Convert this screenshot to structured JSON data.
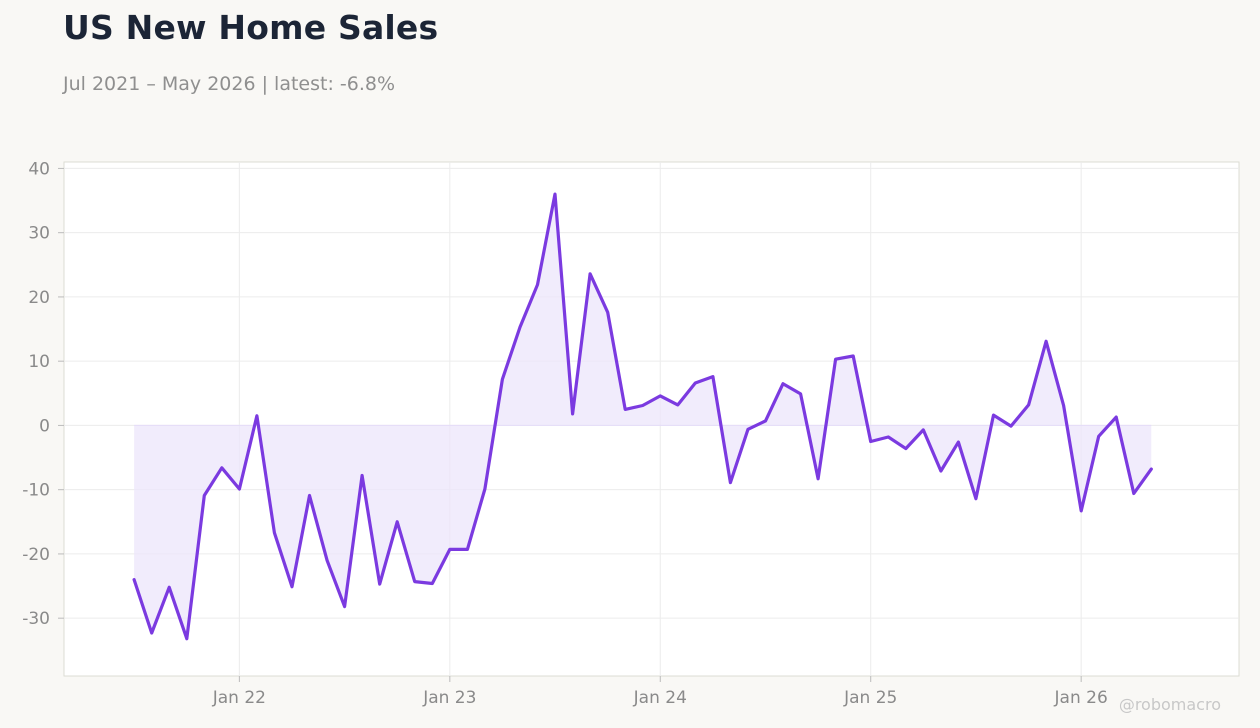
{
  "header": {
    "title": "US New Home Sales",
    "subtitle": "Jul 2021 – May 2026 | latest: -6.8%"
  },
  "watermark": "@robomacro",
  "colors": {
    "line": "#7b3ae0",
    "fill": "#ece6fb",
    "background": "#f9f8f5",
    "plot_background": "#ffffff"
  },
  "chart_data": {
    "type": "line",
    "title": "US New Home Sales",
    "subtitle": "Jul 2021 – May 2026 | latest: -6.8%",
    "xlabel": "",
    "ylabel": "",
    "grid": true,
    "fill_to_zero": true,
    "xlim": [
      "2021-03",
      "2026-10"
    ],
    "ylim": [
      -39,
      41
    ],
    "y_ticks": [
      -30,
      -20,
      -10,
      0,
      10,
      20,
      30,
      40
    ],
    "x_ticks": [
      {
        "date": "2022-01",
        "label": "Jan 22"
      },
      {
        "date": "2023-01",
        "label": "Jan 23"
      },
      {
        "date": "2024-01",
        "label": "Jan 24"
      },
      {
        "date": "2025-01",
        "label": "Jan 25"
      },
      {
        "date": "2026-01",
        "label": "Jan 26"
      }
    ],
    "series": [
      {
        "x": [
          "2021-07",
          "2021-08",
          "2021-09",
          "2021-10",
          "2021-11",
          "2021-12",
          "2022-01",
          "2022-02",
          "2022-03",
          "2022-04",
          "2022-05",
          "2022-06",
          "2022-07",
          "2022-08",
          "2022-09",
          "2022-10",
          "2022-11",
          "2022-12",
          "2023-01",
          "2023-02",
          "2023-03",
          "2023-04",
          "2023-05",
          "2023-06",
          "2023-07",
          "2023-08",
          "2023-09",
          "2023-10",
          "2023-11",
          "2023-12",
          "2024-01",
          "2024-02",
          "2024-03",
          "2024-04",
          "2024-05",
          "2024-06",
          "2024-07",
          "2024-08",
          "2024-09",
          "2024-10",
          "2024-11",
          "2024-12",
          "2025-01",
          "2025-02",
          "2025-03",
          "2025-04",
          "2025-05",
          "2025-06",
          "2025-07",
          "2025-08",
          "2025-09",
          "2025-10",
          "2025-11",
          "2025-12",
          "2026-01",
          "2026-02",
          "2026-03",
          "2026-04",
          "2026-05"
        ],
        "values": [
          -24.0,
          -32.3,
          -25.2,
          -33.2,
          -10.9,
          -6.6,
          -9.9,
          1.5,
          -16.7,
          -25.1,
          -10.9,
          -21.0,
          -28.2,
          -7.8,
          -24.7,
          -15.0,
          -24.3,
          -24.6,
          -19.3,
          -19.3,
          -9.9,
          7.2,
          15.3,
          21.9,
          36.0,
          1.8,
          23.6,
          17.6,
          2.5,
          3.1,
          4.6,
          3.2,
          6.6,
          7.6,
          -8.9,
          -0.6,
          0.7,
          6.5,
          4.9,
          -8.3,
          10.3,
          10.8,
          -2.5,
          -1.8,
          -3.6,
          -0.7,
          -7.1,
          -2.6,
          -11.4,
          1.6,
          -0.1,
          3.2,
          13.1,
          3.1,
          -13.3,
          -1.7,
          1.3,
          -10.6,
          -6.8
        ]
      }
    ]
  }
}
